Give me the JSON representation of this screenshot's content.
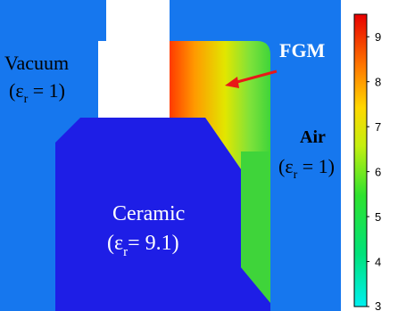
{
  "labels": {
    "vacuum": {
      "name": "Vacuum",
      "eps_prefix": "(ε",
      "eps_sub": "r",
      "eps_suffix": " = 1)"
    },
    "fgm": "FGM",
    "air": {
      "name": "Air",
      "eps_prefix": "(ε",
      "eps_sub": "r",
      "eps_suffix": " = 1)"
    },
    "ceramic": {
      "name": "Ceramic",
      "eps_prefix": "(ε",
      "eps_sub": "r",
      "eps_suffix": "= 9.1)"
    }
  },
  "colorbar": {
    "ticks": [
      "9",
      "8",
      "7",
      "6",
      "5",
      "4",
      "3"
    ],
    "min": 3,
    "max": 9.5
  },
  "colors": {
    "background": "#1677ee",
    "ceramic": "#1e1ee6",
    "vacuum": "#ffffff",
    "arrow": "#e81818",
    "fgm_label": "#ffffff"
  }
}
